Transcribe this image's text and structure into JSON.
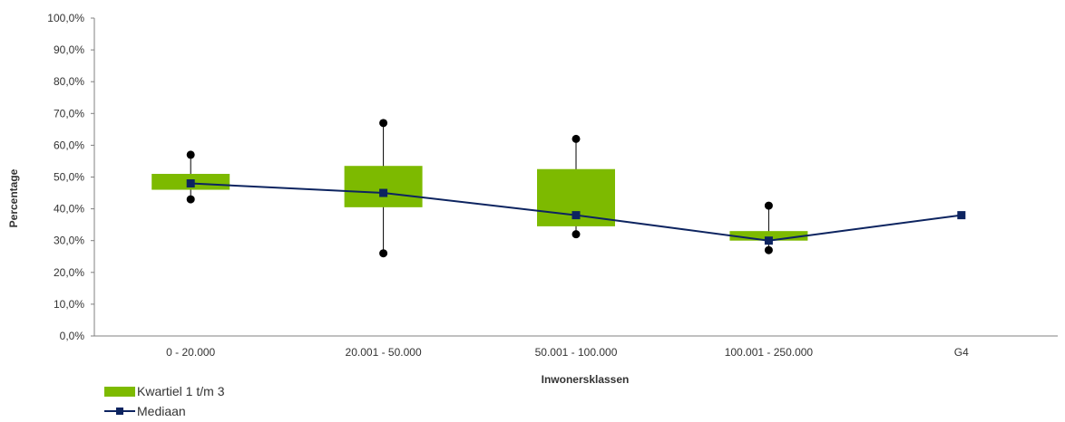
{
  "chart_data": {
    "type": "boxplot",
    "xlabel": "Inwonersklassen",
    "ylabel": "Percentage",
    "ylim": [
      0,
      100
    ],
    "yticks": [
      "0,0%",
      "10,0%",
      "20,0%",
      "30,0%",
      "40,0%",
      "50,0%",
      "60,0%",
      "70,0%",
      "80,0%",
      "90,0%",
      "100,0%"
    ],
    "categories": [
      "0 - 20.000",
      "20.001 - 50.000",
      "50.001 - 100.000",
      "100.001 - 250.000",
      "G4"
    ],
    "series": [
      {
        "name": "Kwartiel 1 t/m 3",
        "q1": [
          46,
          40.5,
          34.5,
          30,
          null
        ],
        "q3": [
          51,
          53.5,
          52.5,
          33,
          null
        ]
      },
      {
        "name": "Mediaan",
        "values": [
          48,
          45,
          38,
          30,
          38
        ]
      }
    ],
    "min": [
      43,
      26,
      32,
      27,
      null
    ],
    "max": [
      57,
      67,
      62,
      41,
      null
    ],
    "colors": {
      "box": "#7dba00",
      "median": "#0d2460",
      "whisker": "#000000",
      "axis": "#808080"
    },
    "grid": false,
    "legend_position": "bottom-left"
  }
}
